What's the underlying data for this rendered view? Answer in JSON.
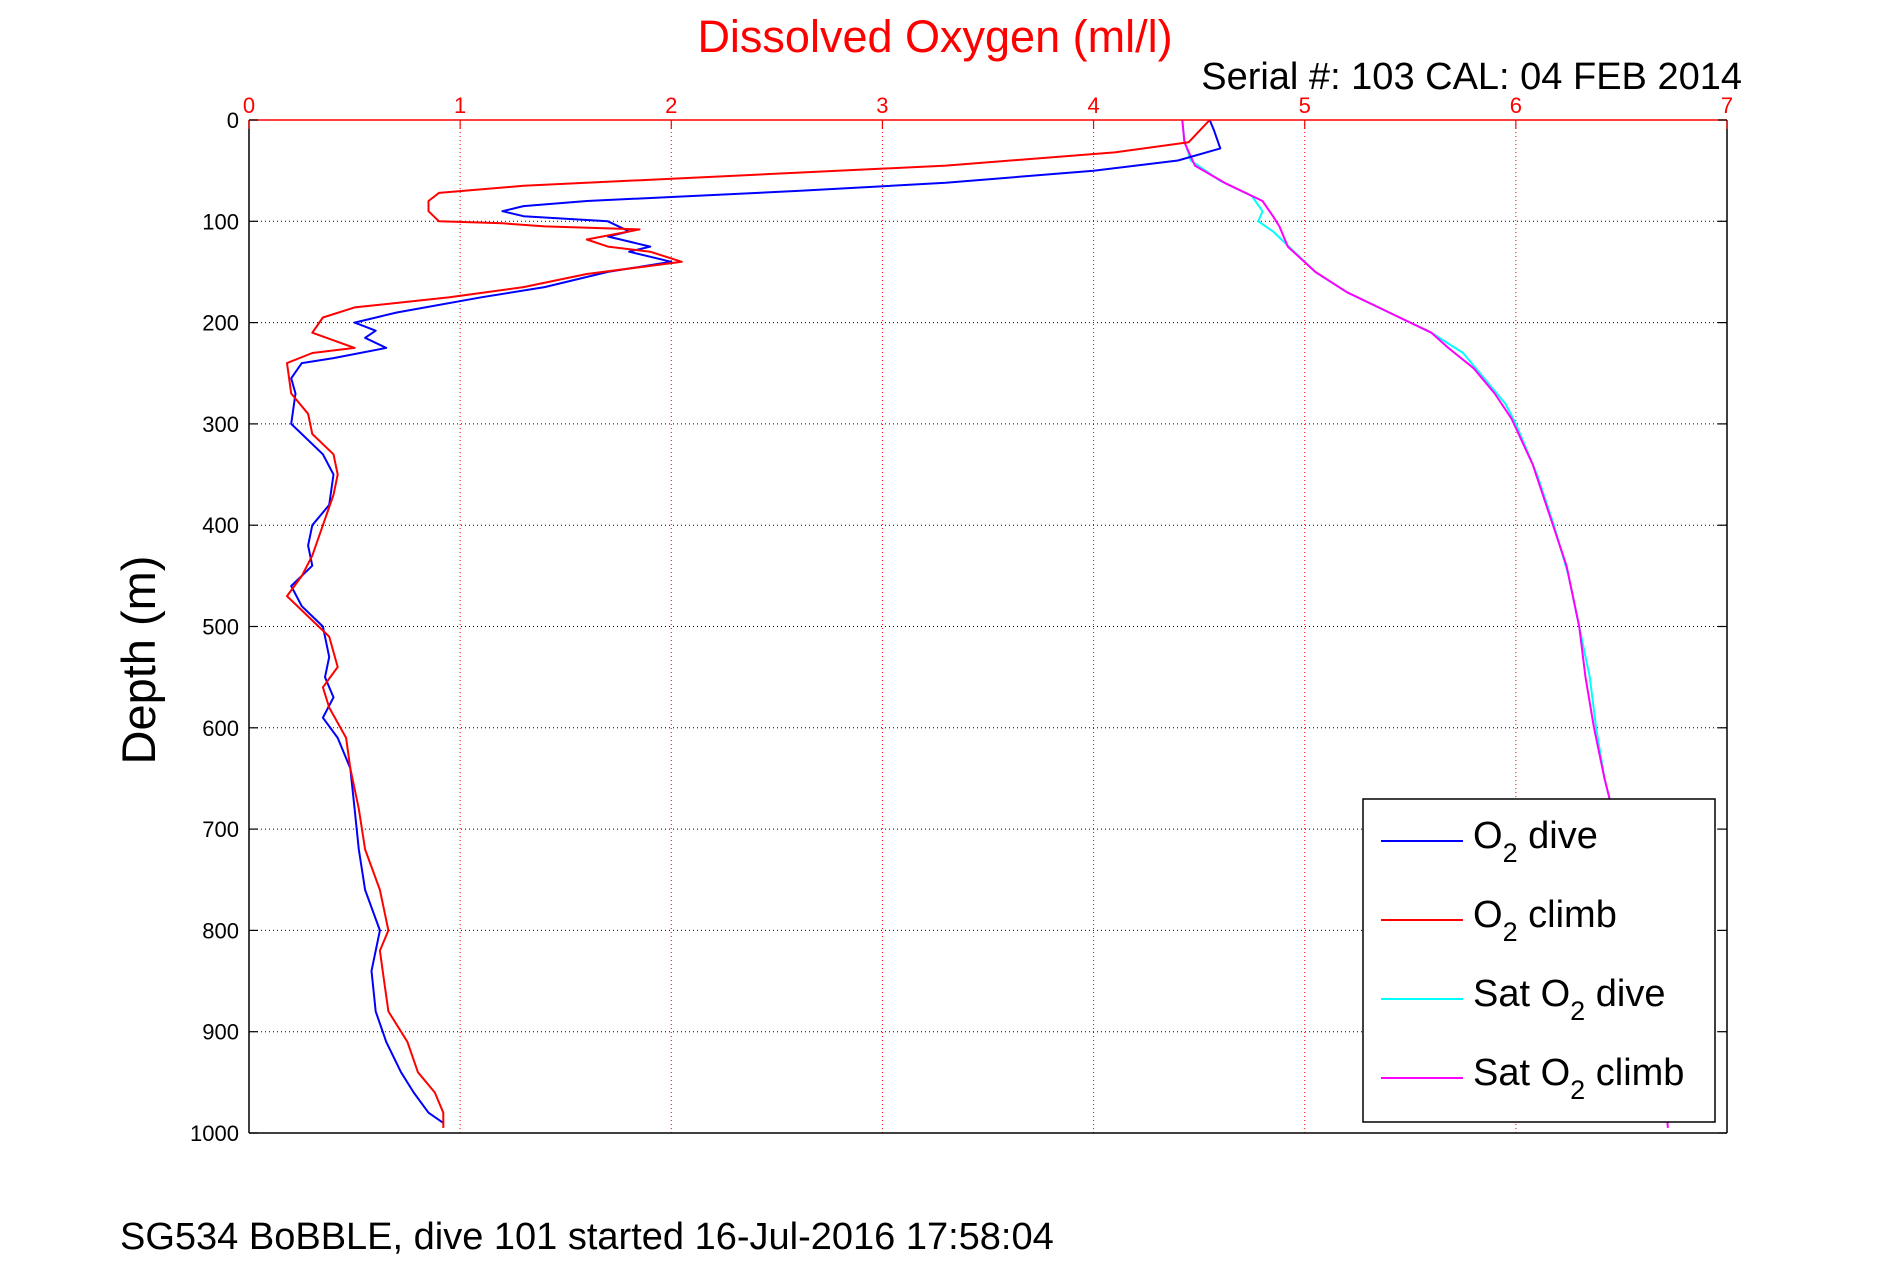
{
  "chart_data": {
    "type": "line",
    "title": "Dissolved Oxygen (ml/l)",
    "subtitle": "Serial #: 103  CAL: 04 FEB 2014",
    "ylabel": "Depth (m)",
    "xlabel": "",
    "footer": "SG534 BoBBLE, dive 101 started 16-Jul-2016 17:58:04",
    "xlim": [
      0,
      7
    ],
    "ylim": [
      0,
      1000
    ],
    "y_reversed": true,
    "x_axis_position": "top",
    "grid": true,
    "legend_position": "bottom-right",
    "x_ticks": [
      "0",
      "1",
      "2",
      "3",
      "4",
      "5",
      "6",
      "7"
    ],
    "y_ticks": [
      "0",
      "100",
      "200",
      "300",
      "400",
      "500",
      "600",
      "700",
      "800",
      "900",
      "1000"
    ],
    "colors": {
      "title": "#ff0000",
      "x_axis": "#ff0000",
      "o2_dive": "#0000ff",
      "o2_climb": "#ff0000",
      "sat_dive": "#00ffff",
      "sat_climb": "#ff00ff"
    },
    "legend": [
      {
        "prefix": "O",
        "sub": "2",
        "suffix": " dive"
      },
      {
        "prefix": "O",
        "sub": "2",
        "suffix": " climb"
      },
      {
        "prefix": "Sat O",
        "sub": "2",
        "suffix": " dive"
      },
      {
        "prefix": "Sat O",
        "sub": "2",
        "suffix": " climb"
      }
    ],
    "series": [
      {
        "key": "o2_dive",
        "points": [
          [
            4.55,
            0
          ],
          [
            4.57,
            10
          ],
          [
            4.6,
            28
          ],
          [
            4.4,
            40
          ],
          [
            4.0,
            50
          ],
          [
            3.3,
            62
          ],
          [
            2.6,
            70
          ],
          [
            1.6,
            80
          ],
          [
            1.3,
            85
          ],
          [
            1.2,
            90
          ],
          [
            1.3,
            95
          ],
          [
            1.7,
            100
          ],
          [
            1.8,
            110
          ],
          [
            1.7,
            115
          ],
          [
            1.9,
            125
          ],
          [
            1.8,
            130
          ],
          [
            2.0,
            140
          ],
          [
            1.7,
            150
          ],
          [
            1.4,
            165
          ],
          [
            1.1,
            175
          ],
          [
            0.7,
            190
          ],
          [
            0.5,
            200
          ],
          [
            0.6,
            208
          ],
          [
            0.55,
            215
          ],
          [
            0.65,
            225
          ],
          [
            0.4,
            235
          ],
          [
            0.25,
            240
          ],
          [
            0.2,
            255
          ],
          [
            0.22,
            270
          ],
          [
            0.2,
            300
          ],
          [
            0.25,
            310
          ],
          [
            0.35,
            330
          ],
          [
            0.4,
            350
          ],
          [
            0.38,
            380
          ],
          [
            0.3,
            400
          ],
          [
            0.28,
            420
          ],
          [
            0.3,
            440
          ],
          [
            0.2,
            460
          ],
          [
            0.25,
            480
          ],
          [
            0.35,
            500
          ],
          [
            0.38,
            530
          ],
          [
            0.36,
            550
          ],
          [
            0.4,
            570
          ],
          [
            0.35,
            590
          ],
          [
            0.42,
            610
          ],
          [
            0.48,
            640
          ],
          [
            0.5,
            680
          ],
          [
            0.52,
            720
          ],
          [
            0.55,
            760
          ],
          [
            0.62,
            800
          ],
          [
            0.6,
            820
          ],
          [
            0.58,
            840
          ],
          [
            0.6,
            880
          ],
          [
            0.65,
            910
          ],
          [
            0.72,
            940
          ],
          [
            0.78,
            960
          ],
          [
            0.85,
            980
          ],
          [
            0.92,
            990
          ]
        ]
      },
      {
        "key": "o2_climb",
        "points": [
          [
            4.55,
            0
          ],
          [
            4.45,
            22
          ],
          [
            4.1,
            32
          ],
          [
            3.3,
            45
          ],
          [
            2.3,
            55
          ],
          [
            1.3,
            65
          ],
          [
            0.9,
            72
          ],
          [
            0.85,
            80
          ],
          [
            0.85,
            90
          ],
          [
            0.9,
            100
          ],
          [
            1.2,
            102
          ],
          [
            1.4,
            105
          ],
          [
            1.85,
            108
          ],
          [
            1.6,
            118
          ],
          [
            1.7,
            125
          ],
          [
            1.9,
            130
          ],
          [
            2.05,
            140
          ],
          [
            1.6,
            152
          ],
          [
            1.3,
            165
          ],
          [
            0.95,
            175
          ],
          [
            0.5,
            185
          ],
          [
            0.35,
            195
          ],
          [
            0.3,
            210
          ],
          [
            0.5,
            225
          ],
          [
            0.3,
            230
          ],
          [
            0.18,
            240
          ],
          [
            0.2,
            270
          ],
          [
            0.28,
            290
          ],
          [
            0.3,
            310
          ],
          [
            0.4,
            330
          ],
          [
            0.42,
            350
          ],
          [
            0.4,
            370
          ],
          [
            0.35,
            400
          ],
          [
            0.3,
            430
          ],
          [
            0.25,
            450
          ],
          [
            0.18,
            470
          ],
          [
            0.28,
            490
          ],
          [
            0.38,
            510
          ],
          [
            0.42,
            540
          ],
          [
            0.35,
            560
          ],
          [
            0.38,
            580
          ],
          [
            0.46,
            610
          ],
          [
            0.48,
            640
          ],
          [
            0.52,
            680
          ],
          [
            0.55,
            720
          ],
          [
            0.62,
            760
          ],
          [
            0.66,
            800
          ],
          [
            0.62,
            820
          ],
          [
            0.64,
            850
          ],
          [
            0.66,
            880
          ],
          [
            0.75,
            910
          ],
          [
            0.8,
            940
          ],
          [
            0.88,
            960
          ],
          [
            0.92,
            980
          ],
          [
            0.92,
            995
          ]
        ]
      },
      {
        "key": "sat_dive",
        "points": [
          [
            4.42,
            0
          ],
          [
            4.43,
            20
          ],
          [
            4.46,
            40
          ],
          [
            4.6,
            60
          ],
          [
            4.75,
            75
          ],
          [
            4.8,
            90
          ],
          [
            4.78,
            100
          ],
          [
            4.85,
            110
          ],
          [
            4.95,
            130
          ],
          [
            5.05,
            150
          ],
          [
            5.2,
            170
          ],
          [
            5.4,
            190
          ],
          [
            5.6,
            210
          ],
          [
            5.75,
            230
          ],
          [
            5.85,
            255
          ],
          [
            5.95,
            280
          ],
          [
            6.0,
            300
          ],
          [
            6.1,
            350
          ],
          [
            6.18,
            400
          ],
          [
            6.25,
            450
          ],
          [
            6.3,
            500
          ],
          [
            6.35,
            550
          ],
          [
            6.38,
            600
          ],
          [
            6.42,
            650
          ],
          [
            6.48,
            700
          ],
          [
            6.53,
            750
          ],
          [
            6.57,
            800
          ],
          [
            6.6,
            850
          ],
          [
            6.64,
            900
          ],
          [
            6.7,
            950
          ],
          [
            6.72,
            990
          ]
        ]
      },
      {
        "key": "sat_climb",
        "points": [
          [
            4.42,
            0
          ],
          [
            4.43,
            22
          ],
          [
            4.48,
            45
          ],
          [
            4.62,
            62
          ],
          [
            4.8,
            80
          ],
          [
            4.85,
            95
          ],
          [
            4.88,
            105
          ],
          [
            4.92,
            125
          ],
          [
            5.05,
            150
          ],
          [
            5.2,
            170
          ],
          [
            5.4,
            190
          ],
          [
            5.6,
            210
          ],
          [
            5.68,
            225
          ],
          [
            5.8,
            245
          ],
          [
            5.9,
            270
          ],
          [
            5.98,
            295
          ],
          [
            6.08,
            340
          ],
          [
            6.16,
            390
          ],
          [
            6.24,
            440
          ],
          [
            6.3,
            500
          ],
          [
            6.33,
            550
          ],
          [
            6.37,
            600
          ],
          [
            6.42,
            650
          ],
          [
            6.48,
            700
          ],
          [
            6.53,
            750
          ],
          [
            6.57,
            800
          ],
          [
            6.6,
            850
          ],
          [
            6.64,
            900
          ],
          [
            6.7,
            950
          ],
          [
            6.72,
            995
          ]
        ]
      }
    ]
  }
}
